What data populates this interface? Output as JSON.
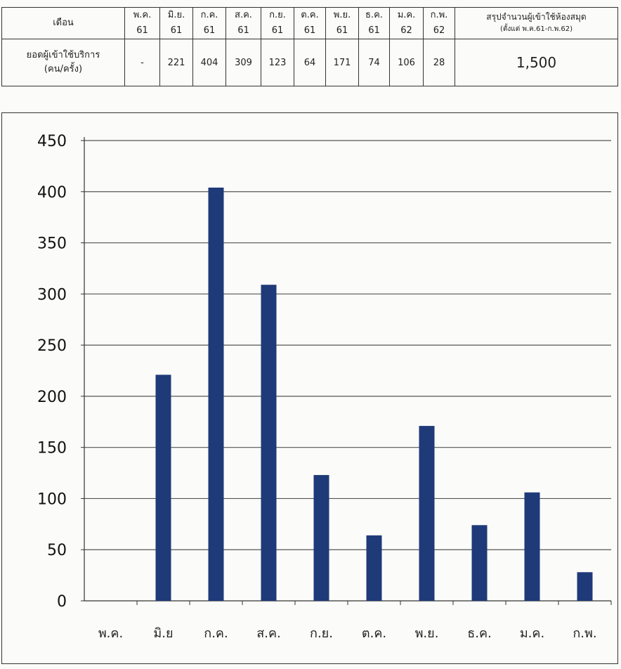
{
  "table": {
    "month_header": "เดือน",
    "months": [
      {
        "abbr": "พ.ค.",
        "year": "61"
      },
      {
        "abbr": "มิ.ย.",
        "year": "61"
      },
      {
        "abbr": "ก.ค.",
        "year": "61"
      },
      {
        "abbr": "ส.ค.",
        "year": "61"
      },
      {
        "abbr": "ก.ย.",
        "year": "61"
      },
      {
        "abbr": "ต.ค.",
        "year": "61"
      },
      {
        "abbr": "พ.ย.",
        "year": "61"
      },
      {
        "abbr": "ธ.ค.",
        "year": "61"
      },
      {
        "abbr": "ม.ค.",
        "year": "62"
      },
      {
        "abbr": "ก.พ.",
        "year": "62"
      }
    ],
    "summary_title": "สรุปจำนวนผู้เข้าใช้ห้องสมุด",
    "summary_sub": "(ตั้งแต่ พ.ค.61-ก.พ.62)",
    "row_label_1": "ยอดผู้เข้าใช้บริการ",
    "row_label_2": "(คน/ครั้ง)",
    "values": [
      "-",
      "221",
      "404",
      "309",
      "123",
      "64",
      "171",
      "74",
      "106",
      "28"
    ],
    "total": "1,500"
  },
  "chart_data": {
    "type": "bar",
    "categories": [
      "พ.ค.",
      "มิ.ย",
      "ก.ค.",
      "ส.ค.",
      "ก.ย.",
      "ต.ค.",
      "พ.ย.",
      "ธ.ค.",
      "ม.ค.",
      "ก.พ."
    ],
    "values": [
      0,
      221,
      404,
      309,
      123,
      64,
      171,
      74,
      106,
      28
    ],
    "ylim": [
      0,
      450
    ],
    "yticks": [
      0,
      50,
      100,
      150,
      200,
      250,
      300,
      350,
      400,
      450
    ],
    "grid": true,
    "legend": "none",
    "bar_color": "#1f3a78"
  }
}
